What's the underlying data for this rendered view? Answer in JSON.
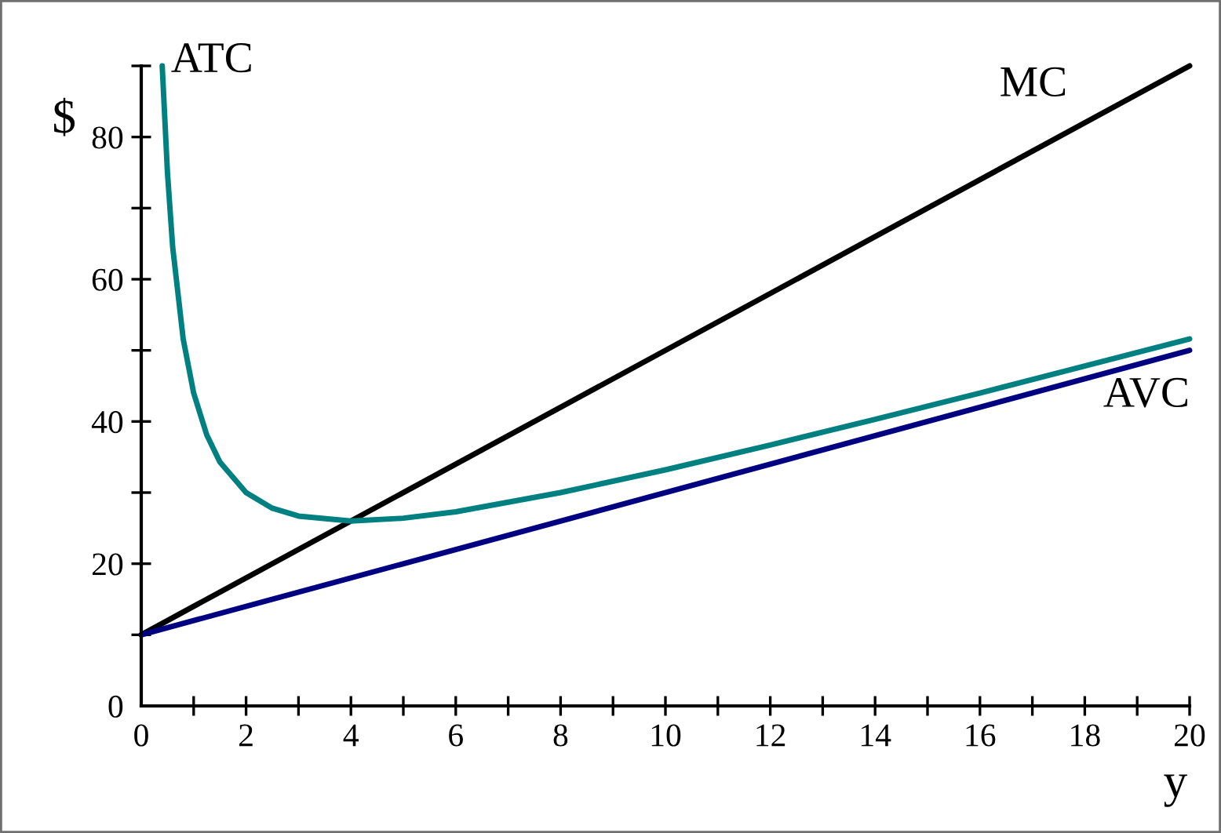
{
  "chart_data": {
    "type": "line",
    "xlabel": "y",
    "ylabel": "$",
    "xlim": [
      0,
      20
    ],
    "ylim": [
      0,
      90
    ],
    "xticks": [
      0,
      {
        "value": 1,
        "label": null
      },
      2,
      {
        "value": 3,
        "label": null
      },
      4,
      {
        "value": 5,
        "label": null
      },
      6,
      {
        "value": 7,
        "label": null
      },
      8,
      {
        "value": 9,
        "label": null
      },
      10,
      {
        "value": 11,
        "label": null
      },
      12,
      {
        "value": 13,
        "label": null
      },
      14,
      {
        "value": 15,
        "label": null
      },
      16,
      {
        "value": 17,
        "label": null
      },
      18,
      {
        "value": 19,
        "label": null
      },
      20
    ],
    "yticks": [
      0,
      {
        "value": 10,
        "label": null
      },
      20,
      {
        "value": 30,
        "label": null
      },
      40,
      {
        "value": 50,
        "label": null
      },
      60,
      {
        "value": 70,
        "label": null
      },
      80,
      {
        "value": 90,
        "label": null
      }
    ],
    "grid": false,
    "legend": false,
    "marker": "none",
    "line_style": "solid",
    "series": [
      {
        "color": "#000000",
        "x": [
          0,
          20
        ],
        "values": [
          10,
          90
        ]
      },
      {
        "color": "#008080",
        "x": [
          0.4,
          0.5,
          0.6,
          0.8,
          1,
          1.25,
          1.5,
          2,
          2.5,
          3,
          4,
          5,
          6,
          8,
          10,
          12,
          14,
          16,
          18,
          20
        ],
        "values": [
          90,
          75,
          64.5,
          51.6,
          44,
          38.1,
          34.3,
          30,
          27.8,
          26.7,
          26,
          26.4,
          27.3,
          30,
          33.2,
          36.7,
          40.3,
          44,
          47.8,
          51.6
        ]
      },
      {
        "color": "#000080",
        "x": [
          0,
          20
        ],
        "values": [
          10,
          50
        ]
      }
    ],
    "annotations": [
      {
        "text": "ATC",
        "x": 0.4,
        "y": 90
      },
      {
        "text": "MC",
        "x": 18,
        "y": 82
      },
      {
        "text": "AVC",
        "x": 20,
        "y": 50
      }
    ]
  }
}
